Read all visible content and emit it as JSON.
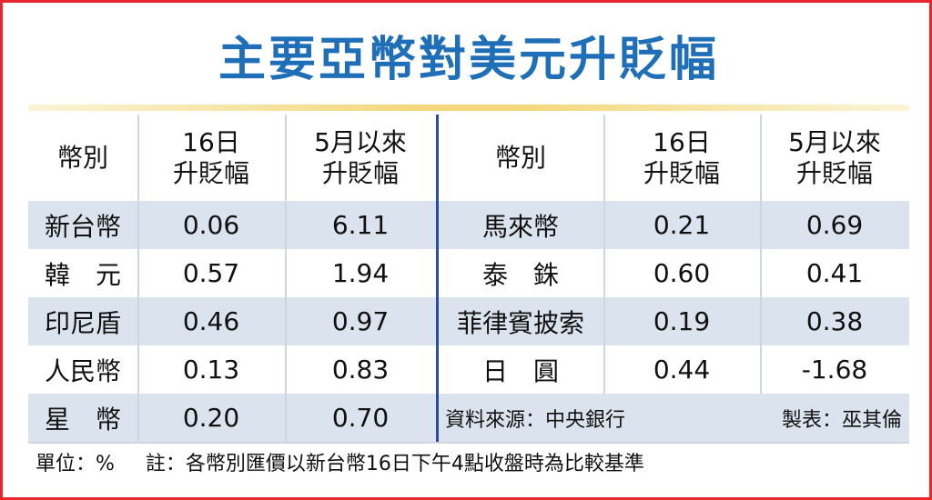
{
  "title": "主要亞幣對美元升貶幅",
  "chart_data": {
    "type": "table",
    "title": "主要亞幣對美元升貶幅",
    "columns": [
      "幣別",
      "16日\n升貶幅",
      "5月以來\n升貶幅"
    ],
    "header": {
      "currency": "幣別",
      "day16": [
        "16日",
        "升貶幅"
      ],
      "since_may": [
        "5月以來",
        "升貶幅"
      ]
    },
    "left_rows": [
      {
        "currency": "新台幣",
        "day16": "0.06",
        "since_may": "6.11"
      },
      {
        "currency": "韓　元",
        "day16": "0.57",
        "since_may": "1.94"
      },
      {
        "currency": "印尼盾",
        "day16": "0.46",
        "since_may": "0.97"
      },
      {
        "currency": "人民幣",
        "day16": "0.13",
        "since_may": "0.83"
      },
      {
        "currency": "星　幣",
        "day16": "0.20",
        "since_may": "0.70"
      }
    ],
    "right_rows": [
      {
        "currency": "馬來幣",
        "day16": "0.21",
        "since_may": "0.69"
      },
      {
        "currency": "泰　銖",
        "day16": "0.60",
        "since_may": "0.41"
      },
      {
        "currency": "菲律賓披索",
        "day16": "0.19",
        "since_may": "0.38"
      },
      {
        "currency": "日　圓",
        "day16": "0.44",
        "since_may": "-1.68"
      }
    ],
    "source": "資料來源：中央銀行",
    "maker": "製表：巫其倫",
    "unit": "單位：%",
    "note": "註：各幣別匯價以新台幣16日下午4點收盤時為比較基準"
  },
  "colors": {
    "title": "#1f6fb8",
    "border": "#e8262d",
    "row_shade": "#dbe3ef",
    "divider_blue": "#2a4d9c",
    "gold_rule": "#f3d77a"
  }
}
